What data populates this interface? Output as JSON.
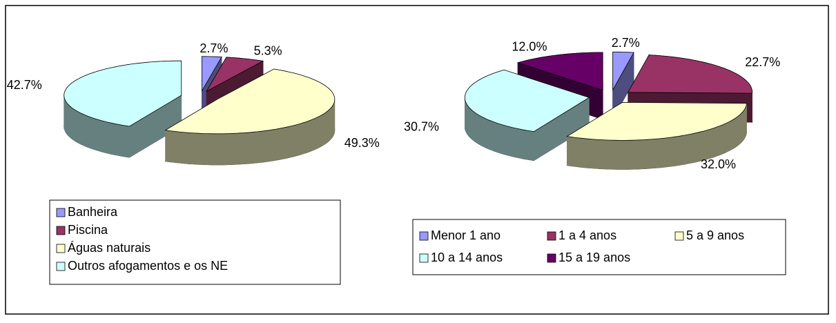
{
  "chart_data": [
    {
      "type": "pie",
      "categories": [
        "Banheira",
        "Piscina",
        "Águas naturais",
        "Outros afogamentos e os NE"
      ],
      "values": [
        2.7,
        5.3,
        49.3,
        42.7
      ],
      "value_labels": [
        "2.7%",
        "5.3%",
        "49.3%",
        "42.7%"
      ],
      "colors": [
        "#9999ff",
        "#993366",
        "#ffffcc",
        "#ccffff"
      ]
    },
    {
      "type": "pie",
      "categories": [
        "Menor 1 ano",
        "1 a 4 anos",
        "5 a 9 anos",
        "10 a 14 anos",
        "15 a 19 anos"
      ],
      "values": [
        2.7,
        22.7,
        32,
        30.7,
        12
      ],
      "value_labels": [
        "2.7%",
        "22.7%",
        "32.0%",
        "30.7%",
        "12.0%"
      ],
      "colors": [
        "#9999ff",
        "#993366",
        "#ffffcc",
        "#ccffff",
        "#660066"
      ]
    }
  ]
}
